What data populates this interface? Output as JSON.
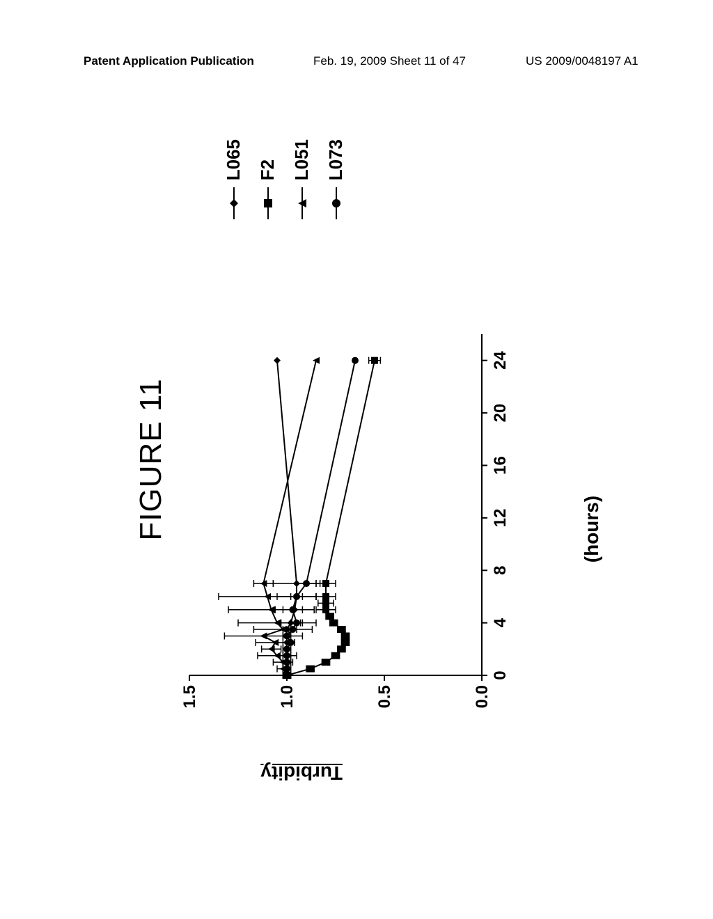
{
  "header": {
    "left": "Patent Application Publication",
    "mid": "Feb. 19, 2009  Sheet 11 of 47",
    "right": "US 2009/0048197 A1"
  },
  "figure": {
    "title": "FIGURE 11",
    "ylabel": "Turbidity",
    "xlabel": "(hours)",
    "type": "line",
    "xlim": [
      0,
      26
    ],
    "ylim": [
      0.0,
      1.5
    ],
    "xticks": [
      0,
      4,
      8,
      12,
      16,
      20,
      24
    ],
    "yticks": [
      0.0,
      0.5,
      1.0,
      1.5
    ],
    "axis_color": "#000000",
    "line_color": "#000000",
    "line_width": 2,
    "background_color": "#ffffff",
    "tick_fontsize": 24,
    "label_fontsize": 28,
    "title_fontsize": 44,
    "series": [
      {
        "name": "L065",
        "marker": "diamond",
        "x": [
          0,
          0.5,
          1,
          1.5,
          2,
          2.5,
          3,
          3.5,
          4,
          5,
          6,
          7,
          24
        ],
        "y": [
          1.0,
          1.0,
          1.0,
          1.0,
          1.0,
          1.0,
          1.0,
          1.0,
          0.98,
          0.96,
          0.95,
          0.95,
          1.05
        ],
        "err": [
          0.02,
          0.02,
          0.02,
          0.02,
          0.02,
          0.02,
          0.02,
          0.02,
          0.05,
          0.1,
          0.1,
          0.12,
          0
        ]
      },
      {
        "name": "F2",
        "marker": "square",
        "x": [
          0,
          0.5,
          1,
          1.5,
          2,
          2.5,
          3,
          3.5,
          4,
          4.5,
          5,
          5.5,
          6,
          7,
          24
        ],
        "y": [
          1.0,
          0.88,
          0.8,
          0.75,
          0.72,
          0.7,
          0.7,
          0.72,
          0.76,
          0.78,
          0.8,
          0.8,
          0.8,
          0.8,
          0.55
        ],
        "err": [
          0.02,
          0.02,
          0.02,
          0.02,
          0.02,
          0.02,
          0.02,
          0.02,
          0.02,
          0.02,
          0.05,
          0.04,
          0.05,
          0.05,
          0.03
        ]
      },
      {
        "name": "L051",
        "marker": "triangle",
        "x": [
          0,
          0.5,
          1,
          1.5,
          2,
          2.5,
          3,
          3.5,
          4,
          5,
          6,
          7,
          24
        ],
        "y": [
          1.0,
          1.02,
          1.02,
          1.05,
          1.08,
          1.06,
          1.12,
          1.02,
          1.05,
          1.08,
          1.1,
          1.12,
          0.85
        ],
        "err": [
          0.02,
          0.03,
          0.05,
          0.1,
          0.05,
          0.1,
          0.2,
          0.15,
          0.2,
          0.22,
          0.25,
          0.05,
          0
        ]
      },
      {
        "name": "L073",
        "marker": "circle",
        "x": [
          0,
          0.5,
          1,
          1.5,
          2,
          2.5,
          3,
          3.5,
          4,
          5,
          6,
          7,
          24
        ],
        "y": [
          1.0,
          1.0,
          1.0,
          1.0,
          1.0,
          0.98,
          1.0,
          0.97,
          0.95,
          0.97,
          0.95,
          0.9,
          0.65
        ],
        "err": [
          0.02,
          0.02,
          0.02,
          0.02,
          0.02,
          0.02,
          0.02,
          0.02,
          0.03,
          0.05,
          0.03,
          0.05,
          0
        ]
      }
    ]
  }
}
